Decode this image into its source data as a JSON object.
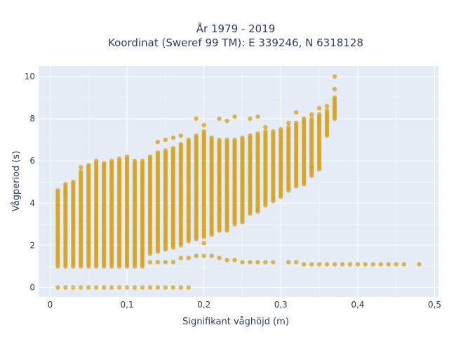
{
  "chart_data": {
    "type": "scatter",
    "title": "År 1979 - 2019",
    "subtitle": "Koordinat (Sweref 99 TM): E 339246, N 6318128",
    "xlabel": "Signifikant våghöjd (m)",
    "ylabel": "Vågperiod (s)",
    "xlim": [
      -0.015,
      0.505
    ],
    "ylim": [
      -0.45,
      10.5
    ],
    "x_ticks": [
      0,
      0.1,
      0.2,
      0.3,
      0.4,
      0.5
    ],
    "x_tick_labels": [
      "0",
      "0,1",
      "0,2",
      "0,3",
      "0,4",
      "0,5"
    ],
    "y_ticks": [
      0,
      2,
      4,
      6,
      8,
      10
    ],
    "y_tick_labels": [
      "0",
      "2",
      "4",
      "6",
      "8",
      "10"
    ],
    "grid": true,
    "legend": "none",
    "colors": {
      "marker": "#d4a017",
      "plot_bg": "#e5ecf6",
      "grid": "#ffffff",
      "text": "#2a3f5f"
    },
    "series": [
      {
        "marker_color": "#d4a017",
        "columns": [
          {
            "x": 0.01,
            "ymin": 1.0,
            "ymax": 4.6
          },
          {
            "x": 0.02,
            "ymin": 1.0,
            "ymax": 4.9
          },
          {
            "x": 0.03,
            "ymin": 1.0,
            "ymax": 5.0
          },
          {
            "x": 0.04,
            "ymin": 1.0,
            "ymax": 5.5
          },
          {
            "x": 0.05,
            "ymin": 1.0,
            "ymax": 5.8
          },
          {
            "x": 0.06,
            "ymin": 1.0,
            "ymax": 5.9
          },
          {
            "x": 0.07,
            "ymin": 1.0,
            "ymax": 5.9
          },
          {
            "x": 0.08,
            "ymin": 1.0,
            "ymax": 6.0
          },
          {
            "x": 0.09,
            "ymin": 1.0,
            "ymax": 6.1
          },
          {
            "x": 0.1,
            "ymin": 1.0,
            "ymax": 6.2
          },
          {
            "x": 0.11,
            "ymin": 1.0,
            "ymax": 6.0
          },
          {
            "x": 0.12,
            "ymin": 1.0,
            "ymax": 6.0
          },
          {
            "x": 0.13,
            "ymin": 1.6,
            "ymax": 6.2
          },
          {
            "x": 0.14,
            "ymin": 1.7,
            "ymax": 6.4
          },
          {
            "x": 0.15,
            "ymin": 1.8,
            "ymax": 6.5
          },
          {
            "x": 0.16,
            "ymin": 1.9,
            "ymax": 6.6
          },
          {
            "x": 0.17,
            "ymin": 2.0,
            "ymax": 6.8
          },
          {
            "x": 0.18,
            "ymin": 2.2,
            "ymax": 7.0
          },
          {
            "x": 0.19,
            "ymin": 2.3,
            "ymax": 7.2
          },
          {
            "x": 0.2,
            "ymin": 2.4,
            "ymax": 7.4
          },
          {
            "x": 0.21,
            "ymin": 2.5,
            "ymax": 7.1
          },
          {
            "x": 0.22,
            "ymin": 2.7,
            "ymax": 7.0
          },
          {
            "x": 0.23,
            "ymin": 2.8,
            "ymax": 7.0
          },
          {
            "x": 0.24,
            "ymin": 3.0,
            "ymax": 7.0
          },
          {
            "x": 0.25,
            "ymin": 3.2,
            "ymax": 7.1
          },
          {
            "x": 0.26,
            "ymin": 3.5,
            "ymax": 7.2
          },
          {
            "x": 0.27,
            "ymin": 3.7,
            "ymax": 7.3
          },
          {
            "x": 0.28,
            "ymin": 3.9,
            "ymax": 7.4
          },
          {
            "x": 0.29,
            "ymin": 4.1,
            "ymax": 7.4
          },
          {
            "x": 0.3,
            "ymin": 4.3,
            "ymax": 7.5
          },
          {
            "x": 0.31,
            "ymin": 4.6,
            "ymax": 7.6
          },
          {
            "x": 0.32,
            "ymin": 4.8,
            "ymax": 7.8
          },
          {
            "x": 0.33,
            "ymin": 5.0,
            "ymax": 8.0
          },
          {
            "x": 0.34,
            "ymin": 5.3,
            "ymax": 8.0
          },
          {
            "x": 0.35,
            "ymin": 5.6,
            "ymax": 8.2
          },
          {
            "x": 0.36,
            "ymin": 7.2,
            "ymax": 8.4
          },
          {
            "x": 0.37,
            "ymin": 8.0,
            "ymax": 9.0
          }
        ],
        "points": [
          {
            "x": 0.01,
            "y": 0
          },
          {
            "x": 0.02,
            "y": 0
          },
          {
            "x": 0.03,
            "y": 0
          },
          {
            "x": 0.04,
            "y": 0
          },
          {
            "x": 0.05,
            "y": 0
          },
          {
            "x": 0.06,
            "y": 0
          },
          {
            "x": 0.07,
            "y": 0
          },
          {
            "x": 0.08,
            "y": 0
          },
          {
            "x": 0.09,
            "y": 0
          },
          {
            "x": 0.1,
            "y": 0
          },
          {
            "x": 0.11,
            "y": 0
          },
          {
            "x": 0.12,
            "y": 0
          },
          {
            "x": 0.13,
            "y": 0
          },
          {
            "x": 0.14,
            "y": 0
          },
          {
            "x": 0.15,
            "y": 0
          },
          {
            "x": 0.16,
            "y": 0
          },
          {
            "x": 0.17,
            "y": 0
          },
          {
            "x": 0.18,
            "y": 0
          },
          {
            "x": 0.01,
            "y": 3.9
          },
          {
            "x": 0.02,
            "y": 4.5
          },
          {
            "x": 0.04,
            "y": 5.7
          },
          {
            "x": 0.06,
            "y": 6.0
          },
          {
            "x": 0.14,
            "y": 6.9
          },
          {
            "x": 0.15,
            "y": 7.0
          },
          {
            "x": 0.16,
            "y": 7.1
          },
          {
            "x": 0.17,
            "y": 7.2
          },
          {
            "x": 0.19,
            "y": 8.0
          },
          {
            "x": 0.2,
            "y": 7.7
          },
          {
            "x": 0.22,
            "y": 8.0
          },
          {
            "x": 0.23,
            "y": 7.9
          },
          {
            "x": 0.24,
            "y": 8.1
          },
          {
            "x": 0.26,
            "y": 8.0
          },
          {
            "x": 0.27,
            "y": 8.1
          },
          {
            "x": 0.28,
            "y": 7.6
          },
          {
            "x": 0.31,
            "y": 7.8
          },
          {
            "x": 0.32,
            "y": 8.3
          },
          {
            "x": 0.34,
            "y": 8.2
          },
          {
            "x": 0.35,
            "y": 8.5
          },
          {
            "x": 0.36,
            "y": 8.6
          },
          {
            "x": 0.37,
            "y": 10.0
          },
          {
            "x": 0.37,
            "y": 9.4
          },
          {
            "x": 0.2,
            "y": 2.1
          },
          {
            "x": 0.23,
            "y": 2.7
          },
          {
            "x": 0.25,
            "y": 3.1
          },
          {
            "x": 0.27,
            "y": 3.6
          },
          {
            "x": 0.33,
            "y": 4.9
          },
          {
            "x": 0.34,
            "y": 5.7
          },
          {
            "x": 0.13,
            "y": 1.2
          },
          {
            "x": 0.14,
            "y": 1.2
          },
          {
            "x": 0.15,
            "y": 1.2
          },
          {
            "x": 0.16,
            "y": 1.2
          },
          {
            "x": 0.17,
            "y": 1.4
          },
          {
            "x": 0.18,
            "y": 1.4
          },
          {
            "x": 0.19,
            "y": 1.5
          },
          {
            "x": 0.2,
            "y": 1.5
          },
          {
            "x": 0.21,
            "y": 1.5
          },
          {
            "x": 0.22,
            "y": 1.4
          },
          {
            "x": 0.23,
            "y": 1.3
          },
          {
            "x": 0.24,
            "y": 1.3
          },
          {
            "x": 0.25,
            "y": 1.2
          },
          {
            "x": 0.26,
            "y": 1.2
          },
          {
            "x": 0.27,
            "y": 1.2
          },
          {
            "x": 0.28,
            "y": 1.2
          },
          {
            "x": 0.29,
            "y": 1.2
          },
          {
            "x": 0.31,
            "y": 1.2
          },
          {
            "x": 0.32,
            "y": 1.2
          },
          {
            "x": 0.33,
            "y": 1.1
          },
          {
            "x": 0.34,
            "y": 1.1
          },
          {
            "x": 0.35,
            "y": 1.1
          },
          {
            "x": 0.36,
            "y": 1.1
          },
          {
            "x": 0.37,
            "y": 1.1
          },
          {
            "x": 0.38,
            "y": 1.1
          },
          {
            "x": 0.39,
            "y": 1.1
          },
          {
            "x": 0.4,
            "y": 1.1
          },
          {
            "x": 0.41,
            "y": 1.1
          },
          {
            "x": 0.42,
            "y": 1.1
          },
          {
            "x": 0.43,
            "y": 1.1
          },
          {
            "x": 0.44,
            "y": 1.1
          },
          {
            "x": 0.45,
            "y": 1.1
          },
          {
            "x": 0.46,
            "y": 1.1
          },
          {
            "x": 0.48,
            "y": 1.1
          }
        ]
      }
    ]
  }
}
